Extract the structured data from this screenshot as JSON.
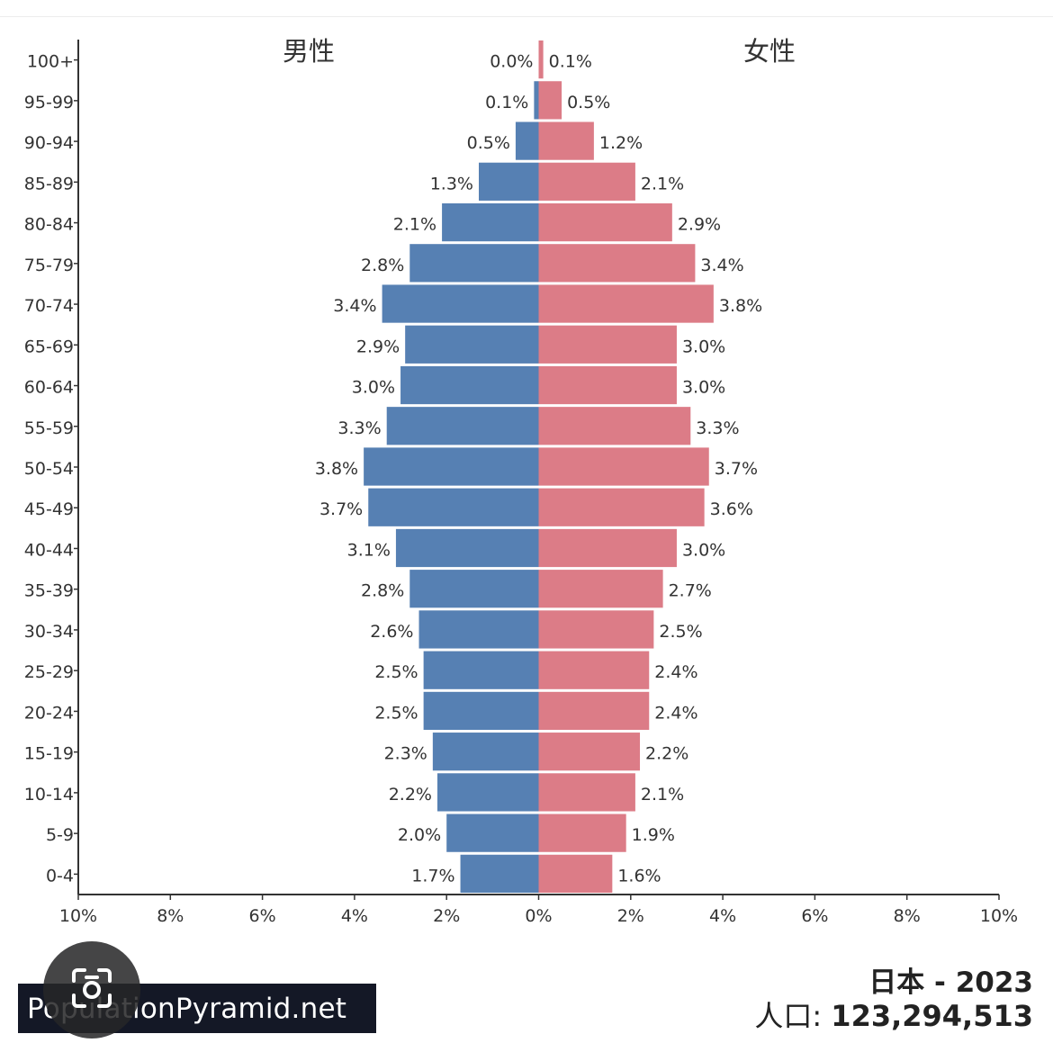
{
  "chart_data": {
    "type": "bar",
    "orientation": "horizontal-pyramid",
    "categories": [
      "100+",
      "95-99",
      "90-94",
      "85-89",
      "80-84",
      "75-79",
      "70-74",
      "65-69",
      "60-64",
      "55-59",
      "50-54",
      "45-49",
      "40-44",
      "35-39",
      "30-34",
      "25-29",
      "20-24",
      "15-19",
      "10-14",
      "5-9",
      "0-4"
    ],
    "series": [
      {
        "name": "男性",
        "color": "#5680b3",
        "values": [
          0.0,
          0.1,
          0.5,
          1.3,
          2.1,
          2.8,
          3.4,
          2.9,
          3.0,
          3.3,
          3.8,
          3.7,
          3.1,
          2.8,
          2.6,
          2.5,
          2.5,
          2.3,
          2.2,
          2.0,
          1.7
        ],
        "labels": [
          "0.0%",
          "0.1%",
          "0.5%",
          "1.3%",
          "2.1%",
          "2.8%",
          "3.4%",
          "2.9%",
          "3.0%",
          "3.3%",
          "3.8%",
          "3.7%",
          "3.1%",
          "2.8%",
          "2.6%",
          "2.5%",
          "2.5%",
          "2.3%",
          "2.2%",
          "2.0%",
          "1.7%"
        ]
      },
      {
        "name": "女性",
        "color": "#dc7c87",
        "values": [
          0.1,
          0.5,
          1.2,
          2.1,
          2.9,
          3.4,
          3.8,
          3.0,
          3.0,
          3.3,
          3.7,
          3.6,
          3.0,
          2.7,
          2.5,
          2.4,
          2.4,
          2.2,
          2.1,
          1.9,
          1.6
        ],
        "labels": [
          "0.1%",
          "0.5%",
          "1.2%",
          "2.1%",
          "2.9%",
          "3.4%",
          "3.8%",
          "3.0%",
          "3.0%",
          "3.3%",
          "3.7%",
          "3.6%",
          "3.0%",
          "2.7%",
          "2.5%",
          "2.4%",
          "2.4%",
          "2.2%",
          "2.1%",
          "1.9%",
          "1.6%"
        ]
      }
    ],
    "xlim": [
      -10,
      10
    ],
    "xticks": [
      -10,
      -8,
      -6,
      -4,
      -2,
      0,
      2,
      4,
      6,
      8,
      10
    ],
    "xtick_labels": [
      "10%",
      "8%",
      "6%",
      "4%",
      "2%",
      "0%",
      "2%",
      "4%",
      "6%",
      "8%",
      "10%"
    ],
    "grid": false
  },
  "footer": {
    "watermark": "PopulationPyramid.net",
    "country_year": "日本 - 2023",
    "population_label": "人口: ",
    "population_value": "123,294,513"
  },
  "overlay": {
    "icon": "camera-lens-icon"
  }
}
